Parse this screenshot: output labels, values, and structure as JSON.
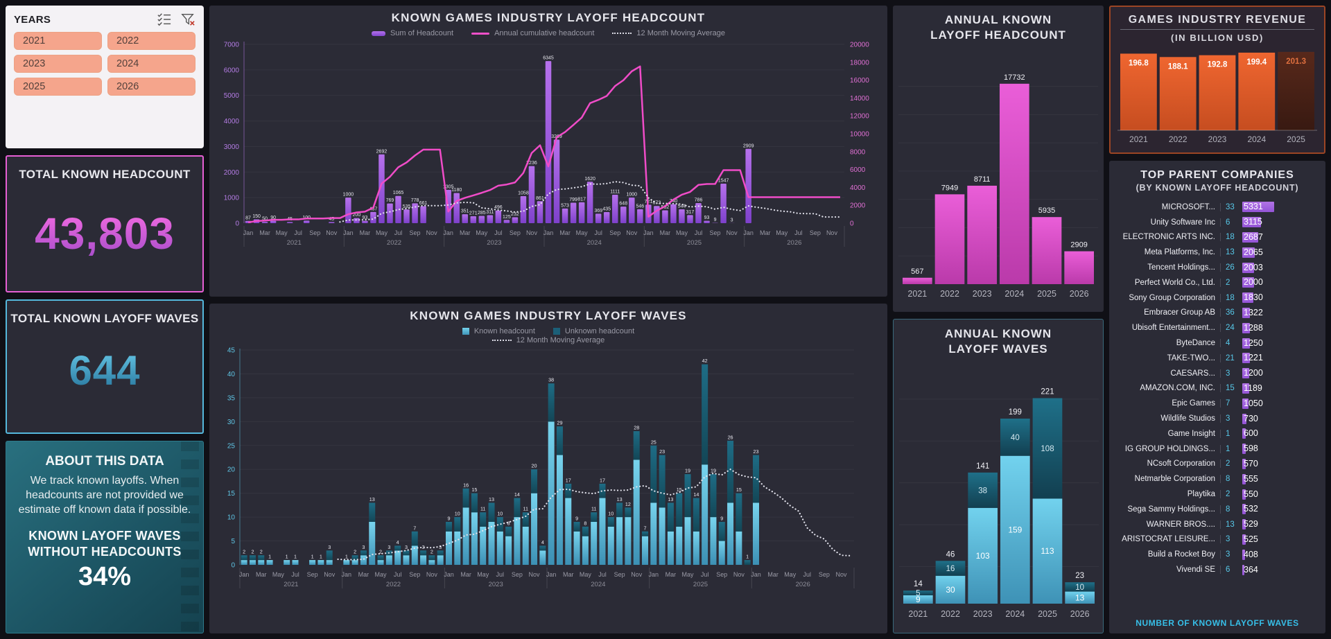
{
  "colors": {
    "accent_purple": "#9a5cdd",
    "accent_pink": "#f050c8",
    "accent_magenta": "#d94fc6",
    "accent_cyan": "#54c2e4",
    "accent_teal_dark": "#1b617a",
    "accent_orange": "#e05a28",
    "accent_salmon": "#f5a58c"
  },
  "slicer": {
    "title": "YEARS",
    "years": [
      "2021",
      "2022",
      "2023",
      "2024",
      "2025",
      "2026"
    ]
  },
  "kpi_headcount": {
    "title": "TOTAL KNOWN HEADCOUNT",
    "value": "43,803"
  },
  "kpi_waves": {
    "title": "TOTAL KNOWN LAYOFF WAVES",
    "value": "644"
  },
  "about": {
    "title": "ABOUT THIS DATA",
    "body": "We track known layoffs. When headcounts are not provided we estimate off known data if possible.",
    "subtitle": "KNOWN LAYOFF WAVES WITHOUT HEADCOUNTS",
    "value": "34%"
  },
  "companies": {
    "title": "TOP PARENT COMPANIES",
    "subtitle": "(BY KNOWN LAYOFF HEADCOUNT)",
    "footer": "NUMBER OF KNOWN LAYOFF WAVES",
    "rows": [
      {
        "name": "MICROSOFT...",
        "waves": 33,
        "headcount": 5331
      },
      {
        "name": "Unity Software Inc",
        "waves": 6,
        "headcount": 3115
      },
      {
        "name": "ELECTRONIC ARTS INC.",
        "waves": 18,
        "headcount": 2687
      },
      {
        "name": "Meta Platforms, Inc.",
        "waves": 13,
        "headcount": 2065
      },
      {
        "name": "Tencent Holdings...",
        "waves": 26,
        "headcount": 2003
      },
      {
        "name": "Perfect World Co., Ltd.",
        "waves": 2,
        "headcount": 2000
      },
      {
        "name": "Sony Group Corporation",
        "waves": 18,
        "headcount": 1830
      },
      {
        "name": "Embracer Group AB",
        "waves": 36,
        "headcount": 1322
      },
      {
        "name": "Ubisoft Entertainment...",
        "waves": 24,
        "headcount": 1288
      },
      {
        "name": "ByteDance",
        "waves": 4,
        "headcount": 1250
      },
      {
        "name": "TAKE-TWO...",
        "waves": 21,
        "headcount": 1221
      },
      {
        "name": "CAESARS...",
        "waves": 3,
        "headcount": 1200
      },
      {
        "name": "AMAZON.COM, INC.",
        "waves": 15,
        "headcount": 1189
      },
      {
        "name": "Epic Games",
        "waves": 7,
        "headcount": 1050
      },
      {
        "name": "Wildlife Studios",
        "waves": 3,
        "headcount": 730
      },
      {
        "name": "Game Insight",
        "waves": 1,
        "headcount": 600
      },
      {
        "name": "IG GROUP HOLDINGS...",
        "waves": 1,
        "headcount": 598
      },
      {
        "name": "NCsoft Corporation",
        "waves": 2,
        "headcount": 570
      },
      {
        "name": "Netmarble Corporation",
        "waves": 8,
        "headcount": 555
      },
      {
        "name": "Playtika",
        "waves": 2,
        "headcount": 550
      },
      {
        "name": "Sega Sammy Holdings...",
        "waves": 8,
        "headcount": 532
      },
      {
        "name": "WARNER BROS....",
        "waves": 13,
        "headcount": 529
      },
      {
        "name": "ARISTOCRAT LEISURE...",
        "waves": 3,
        "headcount": 525
      },
      {
        "name": "Build a Rocket Boy",
        "waves": 3,
        "headcount": 408
      },
      {
        "name": "Vivendi SE",
        "waves": 6,
        "headcount": 364
      }
    ]
  },
  "chart_data": [
    {
      "id": "monthly_headcount",
      "type": "bar",
      "title": "KNOWN GAMES INDUSTRY LAYOFF HEADCOUNT",
      "legend": [
        "Sum of Headcount",
        "Annual cumulative headcount",
        "12 Month Moving Average"
      ],
      "years": [
        "2021",
        "2022",
        "2023",
        "2024",
        "2025",
        "2026"
      ],
      "month_ticks": [
        "Jan",
        "Mar",
        "May",
        "Jul",
        "Sep",
        "Nov"
      ],
      "ylim_left": [
        0,
        7000
      ],
      "ylim_right": [
        0,
        20000
      ],
      "values": [
        87,
        150,
        50,
        90,
        0,
        45,
        0,
        100,
        0,
        0,
        45,
        0,
        1000,
        200,
        93,
        437,
        2692,
        769,
        1065,
        535,
        778,
        661,
        0,
        0,
        1305,
        1180,
        351,
        271,
        285,
        311,
        496,
        125,
        232,
        1058,
        2236,
        861,
        6345,
        3269,
        573,
        799,
        817,
        1620,
        369,
        435,
        1111,
        648,
        1000,
        546,
        721,
        673,
        502,
        740,
        544,
        317,
        786,
        93,
        9,
        1547,
        3,
        0,
        2909,
        0,
        0,
        0,
        0,
        0,
        0,
        0,
        0,
        0,
        0,
        0
      ],
      "lines": {
        "annual_cumulative": "resets each January, right axis",
        "moving_average": "trailing 12 months, left axis"
      }
    },
    {
      "id": "monthly_waves",
      "type": "stacked-bar",
      "title": "KNOWN GAMES INDUSTRY LAYOFF WAVES",
      "legend": [
        "Known headcount",
        "Unknown headcount",
        "12 Month Moving Average"
      ],
      "years": [
        "2021",
        "2022",
        "2023",
        "2024",
        "2025",
        "2026"
      ],
      "month_ticks": [
        "Jan",
        "Mar",
        "May",
        "Jul",
        "Sep",
        "Nov"
      ],
      "ylim": [
        0,
        45
      ],
      "series": [
        {
          "name": "Known headcount",
          "values": [
            1,
            1,
            1,
            1,
            0,
            1,
            1,
            0,
            1,
            1,
            1,
            0,
            1,
            1,
            2,
            9,
            1,
            2,
            3,
            2,
            4,
            2,
            1,
            2,
            7,
            7,
            12,
            11,
            8,
            9,
            7,
            6,
            10,
            8,
            15,
            3,
            30,
            23,
            14,
            7,
            6,
            9,
            14,
            8,
            10,
            10,
            22,
            6,
            13,
            12,
            7,
            8,
            10,
            7,
            21,
            10,
            5,
            13,
            7,
            0,
            13,
            0,
            0,
            0,
            0,
            0,
            0,
            0,
            0,
            0,
            0,
            0
          ]
        },
        {
          "name": "Unknown headcount",
          "values": [
            1,
            1,
            1,
            0,
            0,
            0,
            0,
            0,
            0,
            0,
            2,
            0,
            0,
            1,
            1,
            4,
            1,
            1,
            1,
            1,
            3,
            1,
            1,
            1,
            2,
            3,
            4,
            4,
            3,
            4,
            3,
            2,
            4,
            3,
            5,
            1,
            8,
            6,
            3,
            2,
            2,
            2,
            3,
            2,
            3,
            2,
            6,
            1,
            12,
            11,
            6,
            7,
            9,
            7,
            21,
            9,
            4,
            13,
            8,
            1,
            10,
            0,
            0,
            0,
            0,
            0,
            0,
            0,
            0,
            0,
            0,
            0
          ]
        }
      ]
    },
    {
      "id": "annual_headcount",
      "type": "bar",
      "title": "ANNUAL KNOWN LAYOFF HEADCOUNT",
      "categories": [
        "2021",
        "2022",
        "2023",
        "2024",
        "2025",
        "2026"
      ],
      "values": [
        567,
        7949,
        8711,
        17732,
        5935,
        2909
      ]
    },
    {
      "id": "annual_waves",
      "type": "stacked-bar",
      "title": "ANNUAL KNOWN LAYOFF WAVES",
      "categories": [
        "2021",
        "2022",
        "2023",
        "2024",
        "2025",
        "2026"
      ],
      "series": [
        {
          "name": "Known",
          "values": [
            9,
            30,
            103,
            159,
            113,
            13
          ]
        },
        {
          "name": "Unknown",
          "values": [
            5,
            16,
            38,
            40,
            108,
            10
          ]
        }
      ],
      "totals": [
        14,
        46,
        141,
        199,
        221,
        23
      ]
    },
    {
      "id": "revenue",
      "type": "bar",
      "title": "GAMES INDUSTRY REVENUE",
      "subtitle": "(IN BILLION USD)",
      "categories": [
        "2021",
        "2022",
        "2023",
        "2024",
        "2025"
      ],
      "values": [
        196.8,
        188.1,
        192.8,
        199.4,
        201.3
      ],
      "muted_last_bar": true
    }
  ]
}
